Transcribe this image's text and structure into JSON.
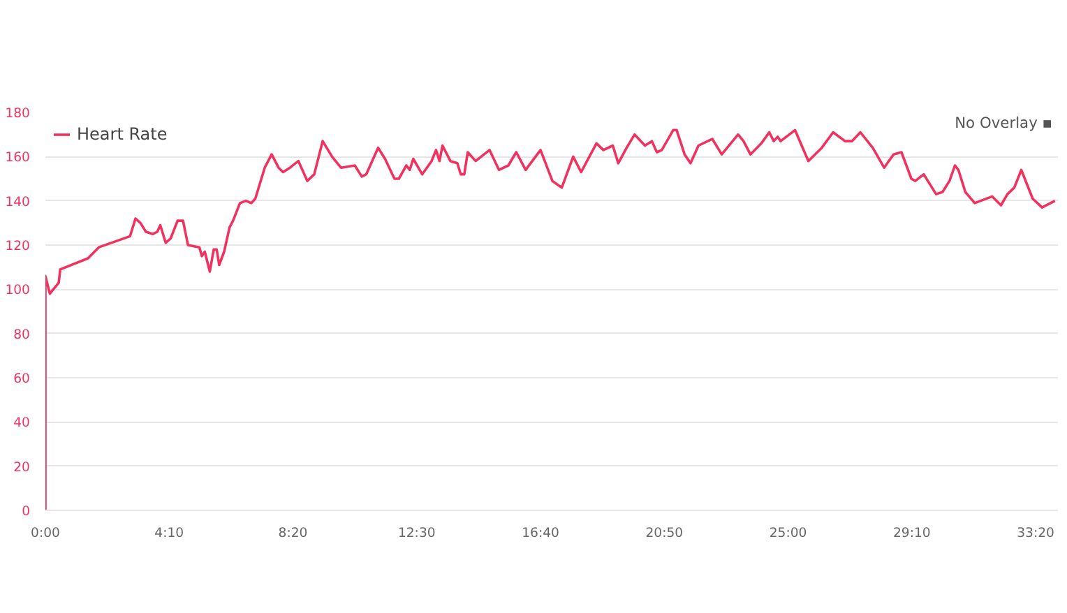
{
  "chart_data": {
    "type": "line",
    "x": [
      0,
      0,
      9,
      27,
      30,
      86,
      108,
      171,
      182,
      192,
      203,
      217,
      226,
      232,
      243,
      253,
      267,
      278,
      288,
      311,
      316,
      322,
      332,
      340,
      346,
      351,
      361,
      372,
      379,
      393,
      405,
      416,
      424,
      443,
      457,
      471,
      480,
      494,
      511,
      529,
      543,
      560,
      579,
      597,
      625,
      639,
      648,
      672,
      686,
      705,
      714,
      729,
      736,
      743,
      761,
      780,
      789,
      796,
      802,
      818,
      832,
      839,
      846,
      853,
      869,
      897,
      916,
      935,
      951,
      970,
      1000,
      1024,
      1043,
      1066,
      1082,
      1113,
      1127,
      1146,
      1157,
      1174,
      1190,
      1211,
      1225,
      1235,
      1245,
      1268,
      1275,
      1291,
      1303,
      1319,
      1347,
      1366,
      1399,
      1410,
      1424,
      1446,
      1462,
      1471,
      1479,
      1485,
      1514,
      1541,
      1568,
      1591,
      1615,
      1629,
      1646,
      1671,
      1694,
      1713,
      1729,
      1749,
      1757,
      1774,
      1799,
      1812,
      1826,
      1837,
      1844,
      1858,
      1877,
      1912,
      1930,
      1943,
      1957,
      1971,
      1994,
      2013,
      2039
    ],
    "series": [
      {
        "name": "Heart Rate",
        "color": "#f0325f",
        "values": [
          0,
          106,
          98,
          103,
          109,
          114,
          119,
          124,
          132,
          130,
          126,
          125,
          126,
          129,
          121,
          123,
          131,
          131,
          120,
          119,
          115,
          117,
          108,
          118,
          118,
          111,
          117,
          128,
          131,
          139,
          140,
          139,
          141,
          155,
          161,
          155,
          153,
          155,
          158,
          149,
          152,
          167,
          160,
          155,
          156,
          151,
          152,
          164,
          159,
          150,
          150,
          156,
          154,
          159,
          152,
          158,
          163,
          158,
          165,
          158,
          157,
          152,
          152,
          162,
          158,
          163,
          154,
          156,
          162,
          154,
          163,
          149,
          146,
          160,
          153,
          166,
          163,
          165,
          157,
          164,
          170,
          165,
          167,
          162,
          163,
          172,
          172,
          161,
          157,
          165,
          168,
          161,
          170,
          167,
          161,
          166,
          171,
          167,
          169,
          167,
          172,
          158,
          164,
          171,
          167,
          167,
          171,
          164,
          155,
          161,
          162,
          150,
          149,
          152,
          143,
          144,
          149,
          156,
          154,
          144,
          139,
          142,
          138,
          143,
          146,
          154,
          141,
          137,
          140
        ]
      }
    ],
    "xlim": [
      0,
      2045
    ],
    "ylim": [
      0,
      180
    ],
    "xticks": [
      {
        "value": 0,
        "label": "0:00"
      },
      {
        "value": 250,
        "label": "4:10"
      },
      {
        "value": 500,
        "label": "8:20"
      },
      {
        "value": 750,
        "label": "12:30"
      },
      {
        "value": 1000,
        "label": "16:40"
      },
      {
        "value": 1250,
        "label": "20:50"
      },
      {
        "value": 1500,
        "label": "25:00"
      },
      {
        "value": 1750,
        "label": "29:10"
      },
      {
        "value": 2000,
        "label": "33:20"
      }
    ],
    "yticks": [
      0,
      20,
      40,
      60,
      80,
      100,
      120,
      140,
      160,
      180
    ],
    "grid": "y",
    "legend": "top left",
    "marker": "none",
    "line_style": "solid",
    "annotations": [
      "No Overlay ▪"
    ]
  }
}
